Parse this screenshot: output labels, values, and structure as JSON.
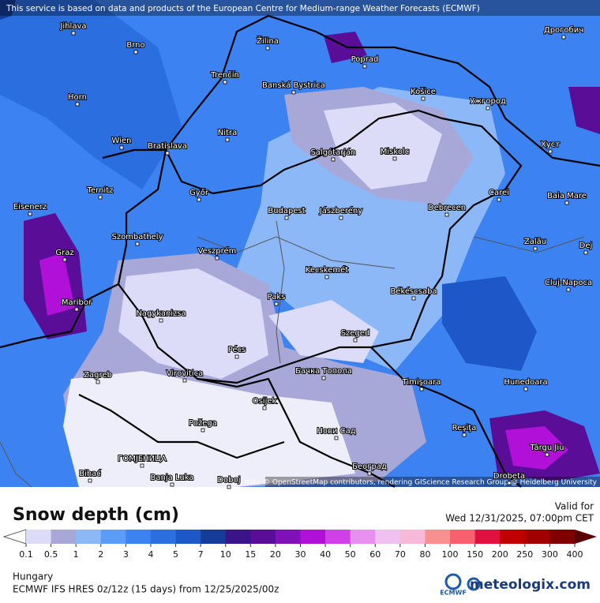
{
  "notice": "This service is based on data and products of the European Centre for Medium-range Weather Forecasts (ECMWF)",
  "attribution": "Map data © OpenStreetMap contributors, rendering GIScience Research Group @ Heidelberg University",
  "cities": [
    "Jihlava",
    "Brno",
    "Žilina",
    "Poprad",
    "Дрогобич",
    "Trenčín",
    "Banská Bystrica",
    "Horn",
    "Košice",
    "Ужгород",
    "Wien",
    "Bratislava",
    "Nitra",
    "Salgótarján",
    "Miskolc",
    "Хуст",
    "Ternitz",
    "Győr",
    "Carei",
    "Baia Mare",
    "Eisenerz",
    "Budapest",
    "Jászberény",
    "Debrecen",
    "Szombathely",
    "Zalău",
    "Graz",
    "Veszprém",
    "Dej",
    "Cluj-Napoca",
    "Kecskemét",
    "Maribor",
    "Békéscsaba",
    "Paks",
    "Nagykanizsa",
    "Szeged",
    "Pécs",
    "Zagreb",
    "Бачка Топола",
    "Virovitica",
    "Timişoara",
    "Hunedoara",
    "Osijek",
    "Požega",
    "Нови Сад",
    "Reşiţa",
    "Târgu Jiu",
    "ГОМЈЕНИЦА",
    "Београд",
    "Bihać",
    "Banja Luka",
    "Doboj",
    "Drobeta"
  ],
  "legend": {
    "title": "Snow depth (cm)",
    "ticks": [
      "0.1",
      "0.5",
      "1",
      "2",
      "3",
      "4",
      "5",
      "7",
      "10",
      "15",
      "20",
      "30",
      "40",
      "50",
      "60",
      "70",
      "80",
      "100",
      "150",
      "200",
      "250",
      "300",
      "400"
    ],
    "colors": [
      "#dcdcf8",
      "#a8a8d8",
      "#8cb8f8",
      "#5a9cf8",
      "#3c82f0",
      "#2a6ee0",
      "#1e58c8",
      "#143c98",
      "#3a1488",
      "#5a0e98",
      "#8010b8",
      "#b010d8",
      "#d040e8",
      "#e890f0",
      "#f0c0f0",
      "#f8b8d8",
      "#f89090",
      "#f86070",
      "#e01040",
      "#c00000",
      "#a00000",
      "#800000"
    ],
    "under_color": "#ffffff",
    "over_color": "#5a0000"
  },
  "valid_label": "Valid for",
  "valid_time": "Wed 12/31/2025, 07:00pm CET",
  "region": "Hungary",
  "model": "ECMWF IFS HRES 0z/12z (15 days) from 12/25/2025/00z",
  "ecmwf_logo": "ECMWF",
  "brand": "meteologix.com"
}
